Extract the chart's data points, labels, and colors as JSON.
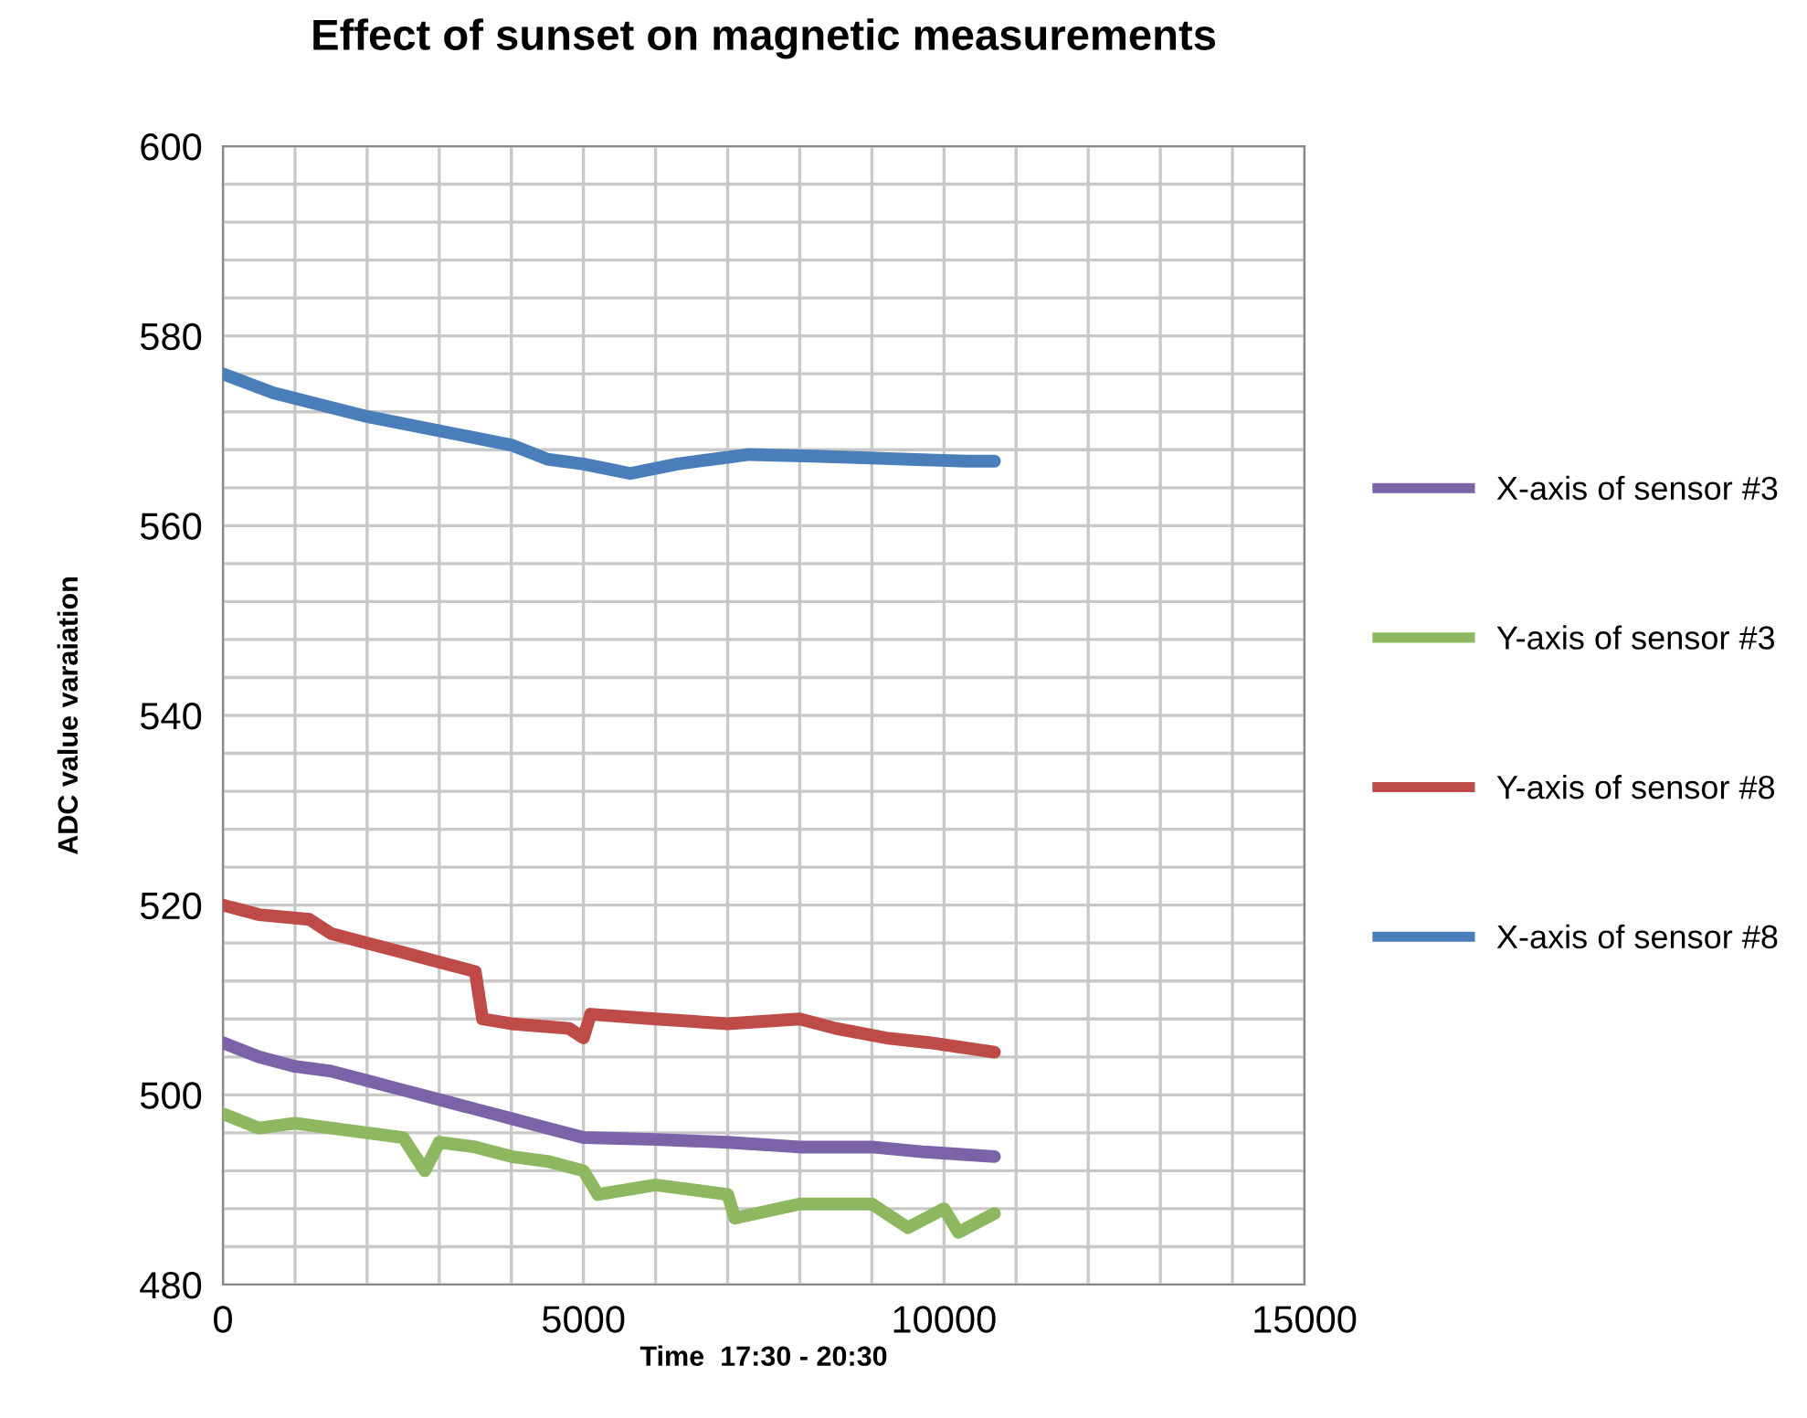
{
  "chart_data": {
    "type": "line",
    "title": "Effect of sunset on magnetic measurements",
    "xlabel": "Time  17:30 - 20:30",
    "ylabel": "ADC value varaiation",
    "xlim": [
      0,
      15000
    ],
    "ylim": [
      480,
      600
    ],
    "xticks": [
      0,
      {
        "value": 1000,
        "label": null
      },
      {
        "value": 2000,
        "label": null
      },
      {
        "value": 3000,
        "label": null
      },
      {
        "value": 4000,
        "label": null
      },
      5000,
      {
        "value": 6000,
        "label": null
      },
      {
        "value": 7000,
        "label": null
      },
      {
        "value": 8000,
        "label": null
      },
      {
        "value": 9000,
        "label": null
      },
      10000,
      {
        "value": 11000,
        "label": null
      },
      {
        "value": 12000,
        "label": null
      },
      {
        "value": 13000,
        "label": null
      },
      {
        "value": 14000,
        "label": null
      },
      15000
    ],
    "yticks": [
      480,
      {
        "value": 484,
        "label": null
      },
      {
        "value": 488,
        "label": null
      },
      {
        "value": 492,
        "label": null
      },
      {
        "value": 496,
        "label": null
      },
      500,
      {
        "value": 504,
        "label": null
      },
      {
        "value": 508,
        "label": null
      },
      {
        "value": 512,
        "label": null
      },
      {
        "value": 516,
        "label": null
      },
      520,
      {
        "value": 524,
        "label": null
      },
      {
        "value": 528,
        "label": null
      },
      {
        "value": 532,
        "label": null
      },
      {
        "value": 536,
        "label": null
      },
      540,
      {
        "value": 544,
        "label": null
      },
      {
        "value": 548,
        "label": null
      },
      {
        "value": 552,
        "label": null
      },
      {
        "value": 556,
        "label": null
      },
      560,
      {
        "value": 564,
        "label": null
      },
      {
        "value": 568,
        "label": null
      },
      {
        "value": 572,
        "label": null
      },
      {
        "value": 576,
        "label": null
      },
      580,
      {
        "value": 584,
        "label": null
      },
      {
        "value": 588,
        "label": null
      },
      {
        "value": 592,
        "label": null
      },
      {
        "value": 596,
        "label": null
      },
      600
    ],
    "grid": true,
    "legend": "right",
    "marker": "none",
    "line_style": "solid",
    "series": [
      {
        "name": "X-axis of sensor #3",
        "color": "#7b63a8",
        "x": [
          0,
          500,
          1000,
          1500,
          2000,
          2500,
          3000,
          3500,
          4000,
          4500,
          5000,
          6000,
          7000,
          8000,
          9000,
          9700,
          10700
        ],
        "values": [
          505.5,
          504,
          503,
          502.5,
          501.5,
          500.5,
          499.5,
          498.5,
          497.5,
          496.5,
          495.5,
          495.3,
          495,
          494.5,
          494.5,
          494,
          493.5
        ]
      },
      {
        "name": "Y-axis of sensor #3",
        "color": "#8db860",
        "x": [
          0,
          500,
          1000,
          1500,
          2000,
          2500,
          2800,
          3000,
          3500,
          4000,
          4500,
          5000,
          5200,
          6000,
          7000,
          7100,
          8000,
          9000,
          9500,
          10000,
          10200,
          10700
        ],
        "values": [
          498,
          496.5,
          497,
          496.5,
          496,
          495.5,
          492,
          495,
          494.5,
          493.5,
          493,
          492,
          489.5,
          490.5,
          489.5,
          487,
          488.5,
          488.5,
          486,
          488,
          485.5,
          487.5
        ]
      },
      {
        "name": "Y-axis of sensor #8",
        "color": "#be4b48",
        "x": [
          0,
          500,
          1200,
          1500,
          2000,
          2500,
          3000,
          3500,
          3600,
          4000,
          4800,
          5000,
          5100,
          6000,
          7000,
          8000,
          8500,
          9200,
          9800,
          10700
        ],
        "values": [
          520,
          519,
          518.5,
          517,
          516,
          515,
          514,
          513,
          508,
          507.5,
          507,
          506,
          508.5,
          508,
          507.5,
          508,
          507,
          506,
          505.5,
          504.5
        ]
      },
      {
        "name": "X-axis of sensor #8",
        "color": "#4a7ebb",
        "x": [
          0,
          700,
          2000,
          3000,
          4000,
          4500,
          5000,
          5650,
          6300,
          7300,
          8300,
          10300,
          10700
        ],
        "values": [
          576,
          574,
          571.5,
          570,
          568.5,
          567,
          566.5,
          565.5,
          566.5,
          567.5,
          567.3,
          566.8,
          566.8
        ]
      }
    ]
  }
}
